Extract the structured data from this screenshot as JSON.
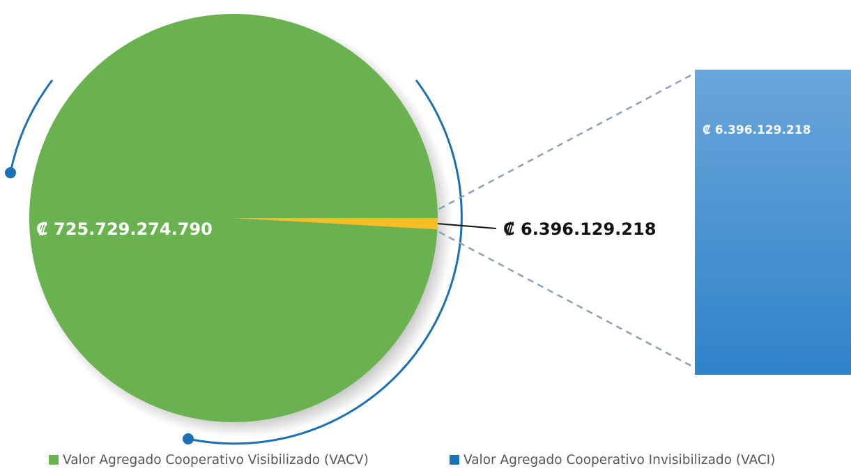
{
  "chart_data": {
    "type": "pie",
    "categories": [
      "Valor Agregado Cooperativo Visibilizado (VACV)",
      "Valor Agregado Cooperativo Invisibilizado (VACI)"
    ],
    "values": [
      725729274790,
      6396129218
    ],
    "value_labels": [
      "₡ 725.729.274.790",
      "₡ 6.396.129.218"
    ],
    "colors": [
      "#6ab150",
      "#fbbd22"
    ],
    "legend_colors": [
      "#6ab150",
      "#1a72bb"
    ],
    "bar_color": "#3f8fd2",
    "legend": "bottom"
  }
}
